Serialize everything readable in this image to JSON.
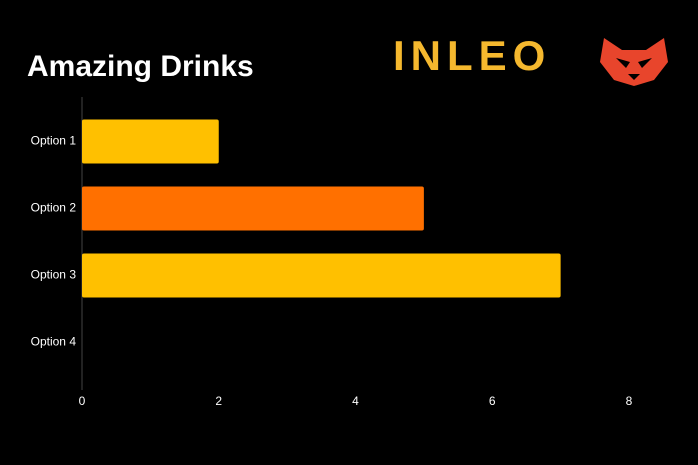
{
  "chart_data": {
    "type": "bar",
    "orientation": "horizontal",
    "title": "Amazing Drinks",
    "brand": "INLEO",
    "categories": [
      "Option 1",
      "Option 2",
      "Option 3",
      "Option 4"
    ],
    "values": [
      2,
      5,
      7,
      0
    ],
    "colors": [
      "#ffc000",
      "#ff7000",
      "#ffc000",
      "#ff7000"
    ],
    "xlim": [
      0,
      8
    ],
    "xticks": [
      0,
      2,
      4,
      6,
      8
    ],
    "grid": false
  }
}
